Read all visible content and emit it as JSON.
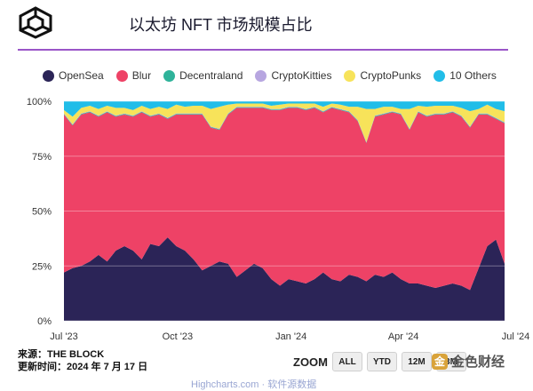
{
  "title": "以太坊 NFT 市场规模占比",
  "legend": [
    {
      "name": "OpenSea",
      "color": "#2b2457"
    },
    {
      "name": "Blur",
      "color": "#ee4266"
    },
    {
      "name": "Decentraland",
      "color": "#2fb39a"
    },
    {
      "name": "CryptoKitties",
      "color": "#b7a6e0"
    },
    {
      "name": "CryptoPunks",
      "color": "#f7e35a"
    },
    {
      "name": "10 Others",
      "color": "#21bde8"
    }
  ],
  "footer": {
    "source": "来源：THE BLOCK",
    "updated": "更新时间：2024 年 7 月 17 日"
  },
  "zoom": {
    "label": "ZOOM",
    "buttons": [
      "ALL",
      "YTD",
      "12M",
      "3M"
    ]
  },
  "watermark": "金色财经",
  "bottom_text": "Highcharts.com · 软件源数据",
  "chart_data": {
    "type": "area",
    "stacked": true,
    "percent": true,
    "x_tick_labels": [
      "Jul '23",
      "Oct '23",
      "Jan '24",
      "Apr '24",
      "Jul '24"
    ],
    "y_tick_labels": [
      "0%",
      "25%",
      "50%",
      "75%",
      "100%"
    ],
    "ylim": [
      0,
      100
    ],
    "grid": true,
    "legend_position": "top",
    "x_start": "2023-07-01",
    "x_step_days": 7,
    "series": [
      {
        "name": "OpenSea",
        "values": [
          22,
          24,
          25,
          27,
          30,
          27,
          32,
          34,
          32,
          28,
          35,
          34,
          38,
          34,
          32,
          28,
          23,
          25,
          27,
          26,
          20,
          23,
          26,
          24,
          19,
          16,
          19,
          18,
          17,
          19,
          22,
          19,
          18,
          21,
          20,
          18,
          21,
          20,
          22,
          19,
          17,
          17,
          16,
          15,
          16,
          17,
          16,
          14,
          24,
          34,
          37,
          26
        ]
      },
      {
        "name": "Blur",
        "values": [
          72,
          65,
          69,
          68,
          63,
          68,
          61,
          60,
          61,
          67,
          58,
          60,
          54,
          60,
          62,
          66,
          71,
          63,
          60,
          68,
          77,
          74,
          71,
          73,
          77,
          80,
          78,
          79,
          79,
          78,
          73,
          78,
          78,
          74,
          71,
          63,
          72,
          74,
          73,
          75,
          70,
          78,
          77,
          79,
          78,
          78,
          77,
          74,
          70,
          60,
          55,
          64
        ]
      },
      {
        "name": "Decentraland",
        "values": [
          0.3,
          0.3,
          0.3,
          0.3,
          0.3,
          0.3,
          0.3,
          0.3,
          0.3,
          0.3,
          0.3,
          0.3,
          0.3,
          0.3,
          0.3,
          0.3,
          0.3,
          0.3,
          0.3,
          0.3,
          0.3,
          0.3,
          0.3,
          0.3,
          0.3,
          0.3,
          0.3,
          0.3,
          0.3,
          0.3,
          0.3,
          0.3,
          0.3,
          0.3,
          0.3,
          0.3,
          0.3,
          0.3,
          0.3,
          0.3,
          0.3,
          0.3,
          0.3,
          0.3,
          0.3,
          0.3,
          0.3,
          0.3,
          0.3,
          0.3,
          0.3,
          0.3
        ]
      },
      {
        "name": "CryptoKitties",
        "values": [
          0.2,
          0.2,
          0.2,
          0.2,
          0.2,
          0.2,
          0.2,
          0.2,
          0.2,
          0.2,
          0.2,
          0.2,
          0.2,
          0.2,
          0.2,
          0.2,
          0.2,
          0.2,
          0.2,
          0.2,
          0.2,
          0.2,
          0.2,
          0.2,
          0.2,
          0.2,
          0.2,
          0.2,
          0.2,
          0.2,
          0.2,
          0.2,
          0.2,
          0.2,
          0.2,
          0.2,
          0.2,
          0.2,
          0.2,
          0.2,
          0.2,
          0.2,
          0.2,
          0.2,
          0.2,
          0.2,
          0.2,
          0.2,
          0.2,
          0.2,
          0.2,
          0.2
        ]
      },
      {
        "name": "CryptoPunks",
        "values": [
          1.5,
          3.5,
          2.5,
          2.5,
          3,
          2.5,
          3.5,
          2.5,
          2.5,
          2.5,
          3,
          3,
          4,
          4,
          3,
          3.5,
          3.5,
          8,
          10,
          4,
          1.5,
          1.5,
          1.5,
          1.5,
          1.5,
          2,
          1.5,
          1.5,
          2.5,
          1.5,
          2,
          1.5,
          2,
          2,
          6,
          15,
          3,
          3,
          2,
          2,
          9,
          2.5,
          4,
          3.5,
          3.5,
          2.5,
          3.5,
          7,
          2,
          4,
          4,
          5
        ]
      },
      {
        "name": "10 Others",
        "values": [
          4,
          7,
          3,
          2,
          3.5,
          2,
          3,
          3,
          4,
          2,
          3.5,
          2.5,
          3.5,
          1.5,
          2.5,
          2,
          2,
          3.5,
          2.5,
          1.5,
          1,
          1,
          1,
          1,
          2,
          1.5,
          1,
          1,
          1,
          1,
          2.5,
          1,
          1.5,
          2.5,
          2.5,
          3.5,
          3.5,
          2.5,
          2.5,
          3.5,
          3.5,
          2,
          2.5,
          2,
          2,
          2,
          3,
          4.5,
          3.5,
          1.5,
          3.5,
          4.5
        ]
      }
    ]
  }
}
